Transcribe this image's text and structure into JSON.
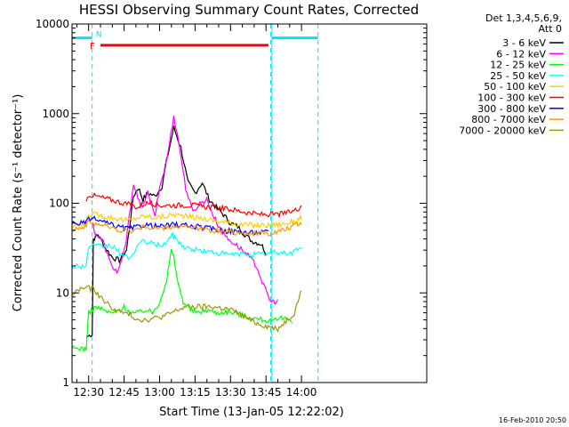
{
  "chart_data": {
    "type": "line",
    "title": "HESSI Observing Summary Count Rates, Corrected",
    "xlabel": "Start Time (13-Jan-05 12:22:02)",
    "ylabel": "Corrected Count Rate (s⁻¹ detector⁻¹)",
    "y_scale": "log",
    "ylim": [
      1,
      10000
    ],
    "xlim_minutes": [
      -7.03,
      142.97
    ],
    "x_ticks": [
      {
        "label": "12:30",
        "min": 0
      },
      {
        "label": "12:45",
        "min": 15
      },
      {
        "label": "13:00",
        "min": 30
      },
      {
        "label": "13:15",
        "min": 45
      },
      {
        "label": "13:30",
        "min": 60
      },
      {
        "label": "13:45",
        "min": 75
      },
      {
        "label": "14:00",
        "min": 90
      }
    ],
    "y_ticks": [
      {
        "label": "1",
        "v": 1
      },
      {
        "label": "10",
        "v": 10
      },
      {
        "label": "100",
        "v": 100
      },
      {
        "label": "1000",
        "v": 1000
      },
      {
        "label": "10000",
        "v": 10000
      }
    ],
    "legend_header": [
      "Det 1,3,4,5,6,9,",
      "Att 0"
    ],
    "legend_placement": "right",
    "footer_date": "16-Feb-2010 20:50",
    "markers": {
      "vlines_solid_min": [
        -7.0,
        77.5
      ],
      "vlines_dashed_min": [
        1.5,
        77.0,
        97.0
      ],
      "night_bars_min": [
        [
          -7.0,
          1.5
        ],
        [
          77.5,
          97.0
        ]
      ],
      "night_level": 7000,
      "flag_bar_min": [
        5.0,
        76.0
      ],
      "flag_level": 5800,
      "flag_label": "F",
      "n_label": "N"
    },
    "series": [
      {
        "name": "3 - 6 keV",
        "color": "#000000",
        "points": [
          [
            -7,
            null
          ],
          [
            -1,
            3.2
          ],
          [
            1.5,
            3.5
          ],
          [
            2,
            40
          ],
          [
            4,
            45
          ],
          [
            7,
            32
          ],
          [
            10,
            25
          ],
          [
            13,
            23
          ],
          [
            16,
            30
          ],
          [
            19,
            120
          ],
          [
            21,
            150
          ],
          [
            23,
            110
          ],
          [
            25,
            130
          ],
          [
            28,
            120
          ],
          [
            31,
            155
          ],
          [
            33,
            300
          ],
          [
            36,
            700
          ],
          [
            39,
            420
          ],
          [
            42,
            170
          ],
          [
            45,
            130
          ],
          [
            48,
            170
          ],
          [
            51,
            110
          ],
          [
            54,
            90
          ],
          [
            57,
            75
          ],
          [
            60,
            60
          ],
          [
            63,
            55
          ],
          [
            66,
            45
          ],
          [
            69,
            38
          ],
          [
            73,
            35
          ],
          [
            75,
            28
          ],
          [
            76.5,
            null
          ]
        ]
      },
      {
        "name": "6 - 12 keV",
        "color": "#ff00ff",
        "points": [
          [
            -7,
            null
          ],
          [
            1.5,
            60
          ],
          [
            3,
            45
          ],
          [
            6,
            38
          ],
          [
            9,
            22
          ],
          [
            12,
            17
          ],
          [
            14,
            22
          ],
          [
            16,
            40
          ],
          [
            19,
            170
          ],
          [
            22,
            90
          ],
          [
            25,
            130
          ],
          [
            28,
            70
          ],
          [
            30,
            150
          ],
          [
            33,
            300
          ],
          [
            36,
            950
          ],
          [
            38,
            500
          ],
          [
            41,
            150
          ],
          [
            44,
            80
          ],
          [
            47,
            100
          ],
          [
            50,
            110
          ],
          [
            53,
            70
          ],
          [
            56,
            50
          ],
          [
            59,
            40
          ],
          [
            62,
            35
          ],
          [
            65,
            30
          ],
          [
            68,
            25
          ],
          [
            71,
            20
          ],
          [
            74,
            12
          ],
          [
            77,
            8
          ],
          [
            80,
            8
          ],
          [
            81.5,
            null
          ]
        ]
      },
      {
        "name": "12 - 25 keV",
        "color": "#00ff00",
        "points": [
          [
            -7,
            2.4
          ],
          [
            -1,
            2.4
          ],
          [
            0,
            6
          ],
          [
            3,
            7
          ],
          [
            6,
            6.5
          ],
          [
            9,
            6
          ],
          [
            12,
            6.2
          ],
          [
            15,
            7
          ],
          [
            18,
            6
          ],
          [
            21,
            6
          ],
          [
            24,
            6.5
          ],
          [
            27,
            6
          ],
          [
            30,
            8
          ],
          [
            33,
            14
          ],
          [
            35,
            30
          ],
          [
            36,
            25
          ],
          [
            38,
            12
          ],
          [
            40,
            8
          ],
          [
            43,
            6.5
          ],
          [
            46,
            6
          ],
          [
            50,
            6.5
          ],
          [
            54,
            6
          ],
          [
            58,
            6.2
          ],
          [
            62,
            6
          ],
          [
            66,
            5.5
          ],
          [
            70,
            5.2
          ],
          [
            74,
            5
          ],
          [
            78,
            4.8
          ],
          [
            82,
            5.2
          ],
          [
            86,
            5
          ],
          [
            90,
            null
          ]
        ]
      },
      {
        "name": "25 - 50 keV",
        "color": "#00ffff",
        "points": [
          [
            -7,
            20
          ],
          [
            -1,
            20
          ],
          [
            0,
            33
          ],
          [
            3,
            33
          ],
          [
            6,
            33
          ],
          [
            9,
            34
          ],
          [
            12,
            30
          ],
          [
            15,
            25
          ],
          [
            18,
            25
          ],
          [
            21,
            35
          ],
          [
            24,
            38
          ],
          [
            27,
            35
          ],
          [
            30,
            34
          ],
          [
            33,
            36
          ],
          [
            35,
            45
          ],
          [
            37,
            40
          ],
          [
            40,
            33
          ],
          [
            43,
            31
          ],
          [
            46,
            30
          ],
          [
            50,
            29
          ],
          [
            54,
            28
          ],
          [
            58,
            27
          ],
          [
            62,
            27
          ],
          [
            66,
            27
          ],
          [
            70,
            27
          ],
          [
            74,
            27
          ],
          [
            78,
            28
          ],
          [
            82,
            28
          ],
          [
            86,
            28
          ],
          [
            89,
            32
          ],
          [
            90,
            30
          ]
        ]
      },
      {
        "name": "50 - 100 keV",
        "color": "#ffcc00",
        "points": [
          [
            -7,
            55
          ],
          [
            -1,
            58
          ],
          [
            0,
            75
          ],
          [
            3,
            75
          ],
          [
            6,
            72
          ],
          [
            9,
            70
          ],
          [
            12,
            68
          ],
          [
            15,
            65
          ],
          [
            18,
            65
          ],
          [
            21,
            70
          ],
          [
            24,
            72
          ],
          [
            27,
            70
          ],
          [
            30,
            70
          ],
          [
            33,
            72
          ],
          [
            36,
            75
          ],
          [
            40,
            72
          ],
          [
            44,
            70
          ],
          [
            48,
            68
          ],
          [
            52,
            65
          ],
          [
            56,
            62
          ],
          [
            60,
            60
          ],
          [
            64,
            58
          ],
          [
            68,
            57
          ],
          [
            72,
            57
          ],
          [
            76,
            57
          ],
          [
            80,
            58
          ],
          [
            84,
            60
          ],
          [
            88,
            65
          ],
          [
            90,
            70
          ]
        ]
      },
      {
        "name": "100 - 300 keV",
        "color": "#ff0000",
        "points": [
          [
            -7,
            null
          ],
          [
            -1,
            105
          ],
          [
            0,
            125
          ],
          [
            3,
            120
          ],
          [
            6,
            115
          ],
          [
            9,
            110
          ],
          [
            12,
            105
          ],
          [
            15,
            100
          ],
          [
            18,
            95
          ],
          [
            21,
            90
          ],
          [
            24,
            100
          ],
          [
            27,
            100
          ],
          [
            30,
            95
          ],
          [
            33,
            95
          ],
          [
            36,
            95
          ],
          [
            40,
            95
          ],
          [
            44,
            95
          ],
          [
            48,
            92
          ],
          [
            52,
            90
          ],
          [
            56,
            88
          ],
          [
            60,
            85
          ],
          [
            64,
            82
          ],
          [
            68,
            78
          ],
          [
            72,
            75
          ],
          [
            76,
            75
          ],
          [
            80,
            75
          ],
          [
            84,
            78
          ],
          [
            88,
            85
          ],
          [
            90,
            95
          ]
        ]
      },
      {
        "name": "300 - 800 keV",
        "color": "#0000ff",
        "points": [
          [
            -7,
            60
          ],
          [
            -1,
            60
          ],
          [
            0,
            68
          ],
          [
            3,
            66
          ],
          [
            6,
            62
          ],
          [
            9,
            58
          ],
          [
            12,
            55
          ],
          [
            15,
            53
          ],
          [
            18,
            52
          ],
          [
            21,
            55
          ],
          [
            24,
            58
          ],
          [
            27,
            56
          ],
          [
            30,
            55
          ],
          [
            33,
            56
          ],
          [
            36,
            58
          ],
          [
            40,
            57
          ],
          [
            44,
            55
          ],
          [
            48,
            54
          ],
          [
            52,
            52
          ],
          [
            56,
            50
          ],
          [
            60,
            49
          ],
          [
            64,
            48
          ],
          [
            68,
            47
          ],
          [
            72,
            47
          ],
          [
            76,
            48
          ],
          [
            78,
            null
          ]
        ]
      },
      {
        "name": "800 - 7000 keV",
        "color": "#ff9900",
        "points": [
          [
            -7,
            52
          ],
          [
            -1,
            55
          ],
          [
            0,
            62
          ],
          [
            3,
            60
          ],
          [
            6,
            57
          ],
          [
            9,
            54
          ],
          [
            12,
            51
          ],
          [
            15,
            50
          ],
          [
            18,
            49
          ],
          [
            21,
            52
          ],
          [
            24,
            55
          ],
          [
            27,
            53
          ],
          [
            30,
            52
          ],
          [
            33,
            53
          ],
          [
            36,
            55
          ],
          [
            40,
            54
          ],
          [
            44,
            53
          ],
          [
            48,
            52
          ],
          [
            52,
            50
          ],
          [
            56,
            49
          ],
          [
            60,
            48
          ],
          [
            64,
            47
          ],
          [
            68,
            46
          ],
          [
            72,
            46
          ],
          [
            76,
            46
          ],
          [
            80,
            48
          ],
          [
            84,
            52
          ],
          [
            88,
            58
          ],
          [
            90,
            60
          ]
        ]
      },
      {
        "name": "7000 - 20000 keV",
        "color": "#999900",
        "points": [
          [
            -7,
            9.5
          ],
          [
            -4,
            11
          ],
          [
            -1,
            11.5
          ],
          [
            2,
            11
          ],
          [
            5,
            9
          ],
          [
            8,
            7.5
          ],
          [
            11,
            6.5
          ],
          [
            14,
            6
          ],
          [
            17,
            5.8
          ],
          [
            20,
            5.2
          ],
          [
            23,
            5
          ],
          [
            26,
            5.1
          ],
          [
            29,
            5.3
          ],
          [
            32,
            5.5
          ],
          [
            35,
            6
          ],
          [
            38,
            6.5
          ],
          [
            41,
            7
          ],
          [
            44,
            7
          ],
          [
            48,
            7
          ],
          [
            52,
            7
          ],
          [
            56,
            6.8
          ],
          [
            60,
            6.5
          ],
          [
            64,
            5.8
          ],
          [
            68,
            5
          ],
          [
            72,
            4.5
          ],
          [
            76,
            4.2
          ],
          [
            80,
            4
          ],
          [
            84,
            5
          ],
          [
            87,
            6
          ],
          [
            89,
            9
          ],
          [
            90,
            11
          ]
        ]
      }
    ]
  }
}
